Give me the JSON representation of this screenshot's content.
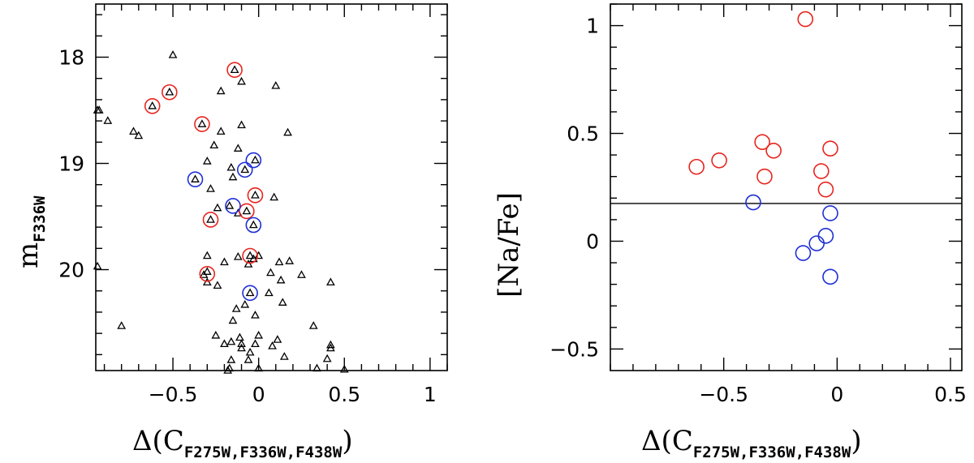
{
  "chart_data": [
    {
      "type": "scatter",
      "xlabel": "Δ(C",
      "xlabel_sub": "F275W,F336W,F438W",
      "xlabel_close": ")",
      "ylabel": "m",
      "ylabel_sub": "F336W",
      "xlim": [
        -0.95,
        1.1
      ],
      "ylim": [
        20.95,
        17.5
      ],
      "y_inverted": true,
      "xticks": [
        -0.5,
        0,
        0.5,
        1
      ],
      "xtick_labels": [
        "−0.5",
        "0",
        "0.5",
        "1"
      ],
      "yticks": [
        18,
        19,
        20
      ],
      "ytick_labels": [
        "18",
        "19",
        "20"
      ],
      "colors": {
        "marker": "#000000",
        "red": "#e8251f",
        "blue": "#1f2fd6"
      },
      "series": [
        {
          "marker": "triangle",
          "color": "#000000",
          "points": [
            [
              -0.5,
              17.98
            ],
            [
              -0.14,
              18.12
            ],
            [
              -0.52,
              18.33
            ],
            [
              -0.62,
              18.46
            ],
            [
              -0.94,
              18.5
            ],
            [
              -0.93,
              18.5
            ],
            [
              -0.88,
              18.6
            ],
            [
              -0.73,
              18.7
            ],
            [
              -0.7,
              18.74
            ],
            [
              -0.22,
              18.32
            ],
            [
              -0.1,
              18.23
            ],
            [
              0.1,
              18.27
            ],
            [
              -0.33,
              18.63
            ],
            [
              -0.22,
              18.7
            ],
            [
              -0.1,
              18.64
            ],
            [
              0.17,
              18.71
            ],
            [
              -0.26,
              18.83
            ],
            [
              -0.12,
              18.86
            ],
            [
              -0.02,
              18.97
            ],
            [
              -0.3,
              18.98
            ],
            [
              -0.08,
              19.06
            ],
            [
              -0.16,
              19.04
            ],
            [
              -0.37,
              19.15
            ],
            [
              -0.15,
              19.13
            ],
            [
              -0.28,
              19.24
            ],
            [
              -0.02,
              19.3
            ],
            [
              0.09,
              19.32
            ],
            [
              -0.17,
              19.4
            ],
            [
              -0.24,
              19.42
            ],
            [
              -0.12,
              19.47
            ],
            [
              -0.07,
              19.45
            ],
            [
              -0.03,
              19.58
            ],
            [
              -0.28,
              19.53
            ],
            [
              -0.3,
              19.87
            ],
            [
              -0.2,
              19.93
            ],
            [
              -0.12,
              19.88
            ],
            [
              -0.05,
              19.87
            ],
            [
              -0.03,
              19.9
            ],
            [
              0.0,
              19.87
            ],
            [
              -0.06,
              19.95
            ],
            [
              0.12,
              19.93
            ],
            [
              0.18,
              19.92
            ],
            [
              -0.3,
              20.02
            ],
            [
              -0.32,
              20.05
            ],
            [
              -0.3,
              20.12
            ],
            [
              -0.24,
              20.15
            ],
            [
              0.07,
              20.03
            ],
            [
              0.25,
              20.05
            ],
            [
              0.13,
              20.1
            ],
            [
              0.42,
              20.12
            ],
            [
              -0.94,
              19.97
            ],
            [
              -0.05,
              20.22
            ],
            [
              0.06,
              20.22
            ],
            [
              -0.13,
              20.37
            ],
            [
              -0.08,
              20.33
            ],
            [
              -0.02,
              20.43
            ],
            [
              0.14,
              20.31
            ],
            [
              -0.15,
              20.48
            ],
            [
              -0.8,
              20.53
            ],
            [
              0.32,
              20.53
            ],
            [
              -0.25,
              20.62
            ],
            [
              -0.16,
              20.68
            ],
            [
              -0.11,
              20.64
            ],
            [
              0.0,
              20.62
            ],
            [
              0.11,
              20.66
            ],
            [
              -0.2,
              20.7
            ],
            [
              -0.1,
              20.7
            ],
            [
              -0.02,
              20.7
            ],
            [
              0.42,
              20.71
            ],
            [
              0.42,
              20.74
            ],
            [
              -0.1,
              20.74
            ],
            [
              0.08,
              20.72
            ],
            [
              -0.05,
              20.78
            ],
            [
              -0.16,
              20.85
            ],
            [
              -0.06,
              20.85
            ],
            [
              0.15,
              20.82
            ],
            [
              0.4,
              20.84
            ],
            [
              -0.17,
              20.93
            ],
            [
              -0.18,
              20.95
            ],
            [
              0.0,
              20.93
            ],
            [
              0.34,
              20.93
            ],
            [
              0.5,
              20.94
            ]
          ]
        },
        {
          "marker": "circle",
          "color": "#e8251f",
          "points": [
            [
              -0.14,
              18.12
            ],
            [
              -0.52,
              18.33
            ],
            [
              -0.62,
              18.46
            ],
            [
              -0.33,
              18.63
            ],
            [
              -0.02,
              19.3
            ],
            [
              -0.07,
              19.45
            ],
            [
              -0.28,
              19.53
            ],
            [
              -0.05,
              19.87
            ],
            [
              -0.3,
              20.04
            ]
          ]
        },
        {
          "marker": "circle",
          "color": "#1f2fd6",
          "points": [
            [
              -0.03,
              18.97
            ],
            [
              -0.08,
              19.06
            ],
            [
              -0.37,
              19.15
            ],
            [
              -0.15,
              19.4
            ],
            [
              -0.03,
              19.58
            ],
            [
              -0.05,
              20.22
            ]
          ]
        }
      ]
    },
    {
      "type": "scatter",
      "xlabel": "Δ(C",
      "xlabel_sub": "F275W,F336W,F438W",
      "xlabel_close": ")",
      "ylabel": "[Na/Fe]",
      "xlim": [
        -1.0,
        0.55
      ],
      "ylim": [
        -0.6,
        1.1
      ],
      "xticks": [
        -0.5,
        0,
        0.5
      ],
      "xtick_labels": [
        "−0.5",
        "0",
        "0.5"
      ],
      "yticks": [
        -0.5,
        0,
        0.5,
        1
      ],
      "ytick_labels": [
        "−0.5",
        "0",
        "0.5",
        "1"
      ],
      "reference_line_y": 0.175,
      "series": [
        {
          "marker": "circle",
          "color": "#e8251f",
          "points": [
            [
              -0.14,
              1.03
            ],
            [
              -0.33,
              0.46
            ],
            [
              -0.28,
              0.42
            ],
            [
              -0.03,
              0.43
            ],
            [
              -0.52,
              0.375
            ],
            [
              -0.62,
              0.345
            ],
            [
              -0.07,
              0.325
            ],
            [
              -0.32,
              0.3
            ],
            [
              -0.05,
              0.24
            ]
          ]
        },
        {
          "marker": "circle",
          "color": "#1f2fd6",
          "points": [
            [
              -0.37,
              0.18
            ],
            [
              -0.03,
              0.13
            ],
            [
              -0.05,
              0.025
            ],
            [
              -0.09,
              -0.01
            ],
            [
              -0.15,
              -0.055
            ],
            [
              -0.03,
              -0.165
            ]
          ]
        }
      ]
    }
  ]
}
